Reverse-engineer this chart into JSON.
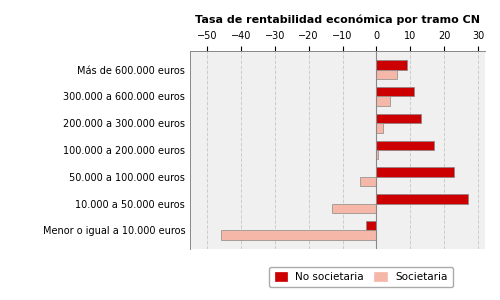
{
  "title": "Tasa de rentabilidad económica por tramo CN",
  "categories": [
    "Menor o igual a 10.000 euros",
    "10.000 a 50.000 euros",
    "50.000 a 100.000 euros",
    "100.000 a 200.000 euros",
    "200.000 a 300.000 euros",
    "300.000 a 600.000 euros",
    "Más de 600.000 euros"
  ],
  "no_societaria": [
    -3,
    27,
    23,
    17,
    13,
    11,
    9
  ],
  "societaria": [
    -46,
    -13,
    -5,
    0.5,
    2,
    4,
    6
  ],
  "color_no_soc": "#cc0000",
  "color_soc": "#f5b8a8",
  "xlim": [
    -55,
    32
  ],
  "xticks": [
    -50,
    -40,
    -30,
    -20,
    -10,
    0,
    10,
    20,
    30
  ],
  "legend_no_soc": "No societaria",
  "legend_soc": "Societaria",
  "bar_height": 0.35,
  "background_color": "#ffffff",
  "plot_bg_color": "#f0f0f0"
}
